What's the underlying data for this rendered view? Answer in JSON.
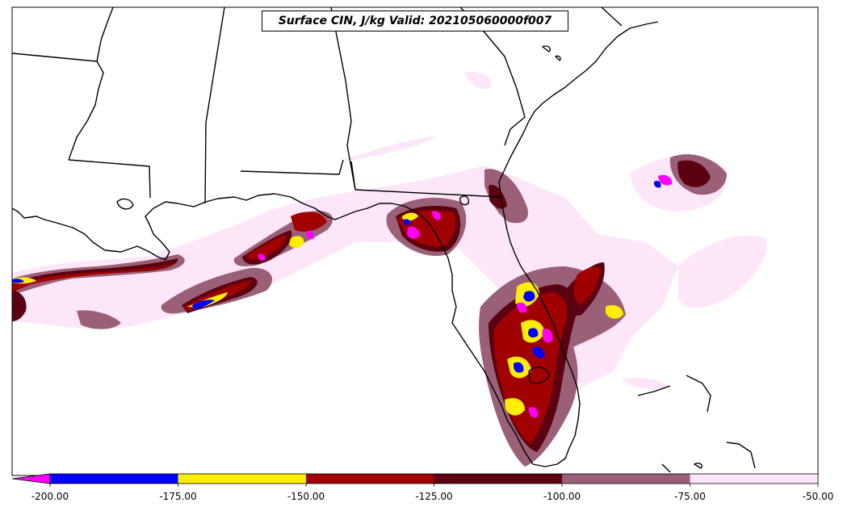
{
  "title": "Surface CIN, J/kg Valid: 202105060000f007",
  "colorbar": {
    "ticks": [
      "-200.00",
      "-175.00",
      "-150.00",
      "-125.00",
      "-100.00",
      "-75.00",
      "-50.00"
    ],
    "extend": "min",
    "under_color": "#ff00ff",
    "bins": [
      {
        "from": -200,
        "to": -175,
        "color": "#0000ff"
      },
      {
        "from": -175,
        "to": -150,
        "color": "#ffee00"
      },
      {
        "from": -150,
        "to": -125,
        "color": "#a00000"
      },
      {
        "from": -125,
        "to": -100,
        "color": "#5a0010"
      },
      {
        "from": -100,
        "to": -75,
        "color": "#9a6077"
      },
      {
        "from": -75,
        "to": -50,
        "color": "#fde6f8"
      }
    ]
  },
  "map": {
    "region": "Southeastern United States and Gulf of Mexico",
    "field": "Surface CIN"
  }
}
